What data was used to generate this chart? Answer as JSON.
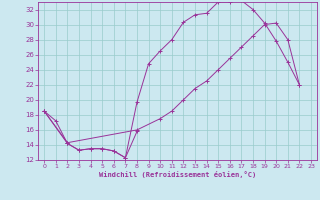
{
  "xlabel": "Windchill (Refroidissement éolien,°C)",
  "bg_color": "#cce8f0",
  "line_color": "#993399",
  "grid_color": "#99cccc",
  "xlim": [
    -0.5,
    23.5
  ],
  "ylim": [
    12,
    33
  ],
  "yticks": [
    12,
    14,
    16,
    18,
    20,
    22,
    24,
    26,
    28,
    30,
    32
  ],
  "xticks": [
    0,
    1,
    2,
    3,
    4,
    5,
    6,
    7,
    8,
    9,
    10,
    11,
    12,
    13,
    14,
    15,
    16,
    17,
    18,
    19,
    20,
    21,
    22,
    23
  ],
  "series1_x": [
    0,
    1,
    2,
    3,
    4,
    5,
    6,
    7,
    8,
    9,
    10,
    11,
    12,
    13,
    14,
    15,
    16,
    17,
    18,
    19,
    20,
    21,
    22
  ],
  "series1_y": [
    18.5,
    17.2,
    14.2,
    13.3,
    13.5,
    13.5,
    13.2,
    12.3,
    19.7,
    24.8,
    26.5,
    28.0,
    30.3,
    31.3,
    31.5,
    33.0,
    33.0,
    33.2,
    32.0,
    30.2,
    27.8,
    25.0,
    22.0
  ],
  "series2_x": [
    0,
    2,
    3,
    4,
    5,
    6,
    7,
    8
  ],
  "series2_y": [
    18.5,
    14.2,
    13.3,
    13.5,
    13.5,
    13.2,
    12.3,
    15.8
  ],
  "series3_x": [
    0,
    2,
    8,
    10,
    11,
    12,
    13,
    14,
    15,
    16,
    17,
    18,
    19,
    20,
    21,
    22
  ],
  "series3_y": [
    18.5,
    14.3,
    16.0,
    17.5,
    18.5,
    20.0,
    21.5,
    22.5,
    24.0,
    25.5,
    27.0,
    28.5,
    30.0,
    30.2,
    28.0,
    22.0
  ]
}
